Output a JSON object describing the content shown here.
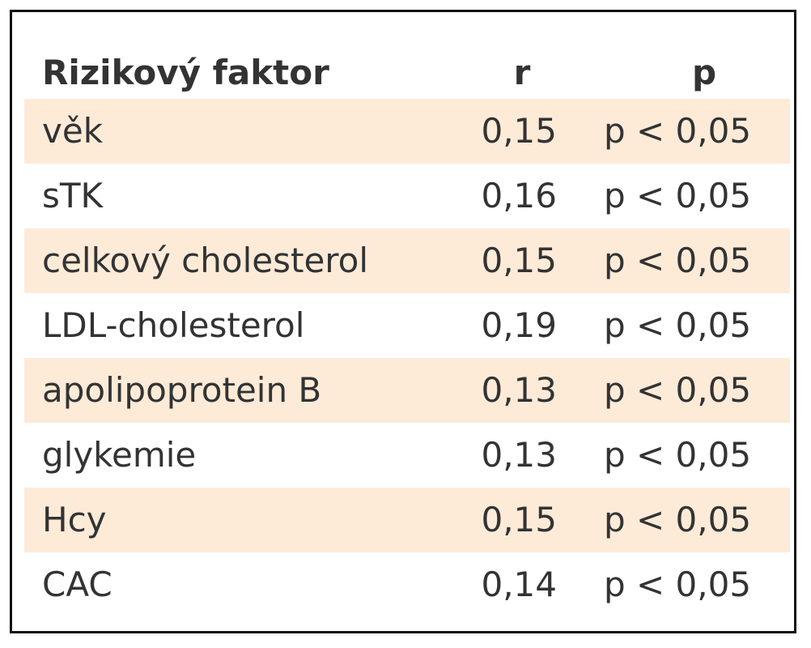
{
  "table": {
    "header": [
      "Rizikový faktor",
      "r",
      "p"
    ],
    "rows": [
      [
        "věk",
        "0,15",
        "p < 0,05"
      ],
      [
        "sTK",
        "0,16",
        "p < 0,05"
      ],
      [
        "celkový cholesterol",
        "0,15",
        "p < 0,05"
      ],
      [
        "LDL-cholesterol",
        "0,19",
        "p < 0,05"
      ],
      [
        "apolipoprotein B",
        "0,13",
        "p < 0,05"
      ],
      [
        "glykemie",
        "0,13",
        "p < 0,05"
      ],
      [
        "Hcy",
        "0,15",
        "p < 0,05"
      ],
      [
        "CAC",
        "0,14",
        "p < 0,05"
      ]
    ]
  }
}
